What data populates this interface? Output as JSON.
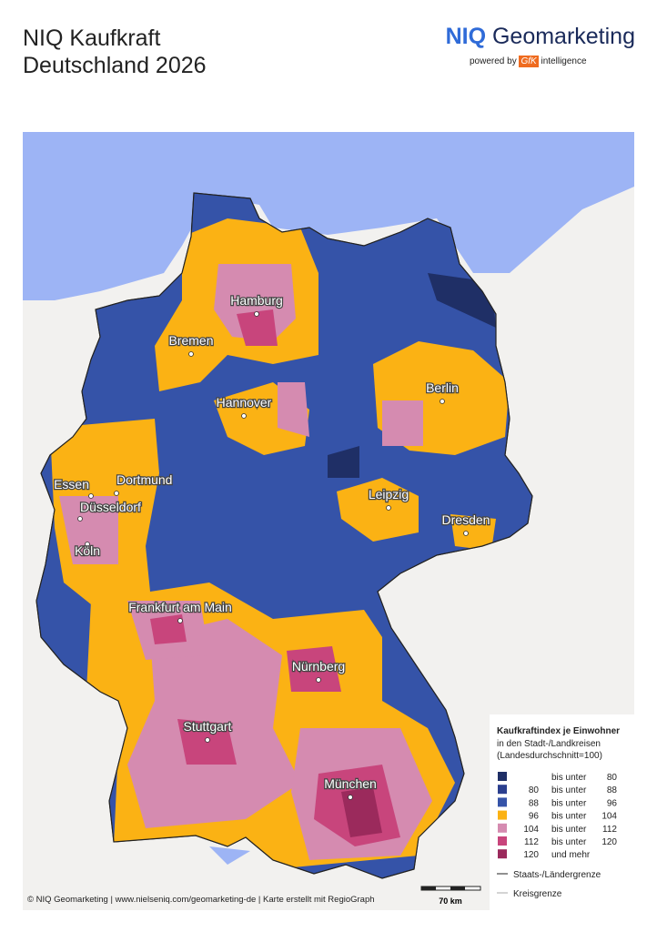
{
  "header": {
    "title_line1": "NIQ Kaufkraft",
    "title_line2": "Deutschland 2026",
    "logo_brand": "NIQ",
    "logo_product": "Geomarketing",
    "powered_by": "powered by",
    "gfk": "GfK",
    "intelligence": "intelligence"
  },
  "cities": [
    "Hamburg",
    "Bremen",
    "Berlin",
    "Hannover",
    "Essen",
    "Dortmund",
    "Düsseldorf",
    "Köln",
    "Leipzig",
    "Dresden",
    "Frankfurt am Main",
    "Nürnberg",
    "Stuttgart",
    "München"
  ],
  "legend": {
    "title": "Kaufkraftindex je Einwohner",
    "subtitle_line1": "in den Stadt-/Landkreisen",
    "subtitle_line2": "(Landesdurchschnitt=100)",
    "classes": [
      {
        "color": "#1f2f66",
        "connector": "bis unter",
        "to": "80"
      },
      {
        "color": "#2b3f8f",
        "from": "80",
        "connector": "bis unter",
        "to": "88"
      },
      {
        "color": "#3553a8",
        "from": "88",
        "connector": "bis unter",
        "to": "96"
      },
      {
        "color": "#fbb214",
        "from": "96",
        "connector": "bis unter",
        "to": "104"
      },
      {
        "color": "#d58bb0",
        "from": "104",
        "connector": "bis unter",
        "to": "112"
      },
      {
        "color": "#c8457c",
        "from": "112",
        "connector": "bis unter",
        "to": "120"
      },
      {
        "color": "#9b2a5c",
        "from": "120",
        "connector": "und mehr"
      }
    ],
    "border_state": "Staats-/Ländergrenze",
    "border_district": "Kreisgrenze"
  },
  "scale": "70 km",
  "footer": "© NIQ Geomarketing | www.nielseniq.com/geomarketing-de | Karte erstellt mit RegioGraph"
}
